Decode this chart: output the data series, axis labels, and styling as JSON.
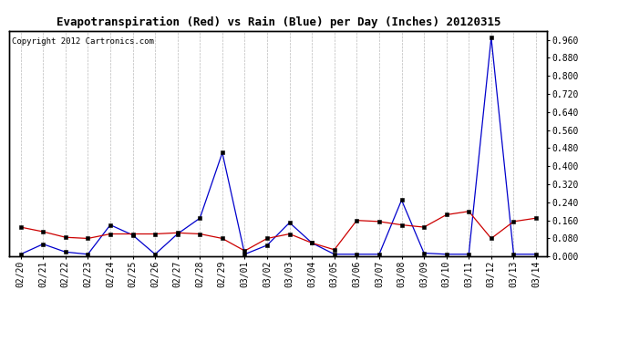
{
  "title": "Evapotranspiration (Red) vs Rain (Blue) per Day (Inches) 20120315",
  "copyright": "Copyright 2012 Cartronics.com",
  "x_labels": [
    "02/20",
    "02/21",
    "02/22",
    "02/23",
    "02/24",
    "02/25",
    "02/26",
    "02/27",
    "02/28",
    "02/29",
    "03/01",
    "03/02",
    "03/03",
    "03/04",
    "03/05",
    "03/06",
    "03/07",
    "03/08",
    "03/09",
    "03/10",
    "03/11",
    "03/12",
    "03/13",
    "03/14"
  ],
  "rain_blue": [
    0.01,
    0.055,
    0.02,
    0.01,
    0.14,
    0.095,
    0.01,
    0.1,
    0.17,
    0.46,
    0.01,
    0.05,
    0.15,
    0.06,
    0.01,
    0.01,
    0.01,
    0.25,
    0.015,
    0.01,
    0.01,
    0.97,
    0.01,
    0.01
  ],
  "et_red": [
    0.13,
    0.11,
    0.085,
    0.08,
    0.1,
    0.1,
    0.1,
    0.105,
    0.1,
    0.08,
    0.025,
    0.08,
    0.1,
    0.06,
    0.03,
    0.16,
    0.155,
    0.14,
    0.13,
    0.185,
    0.2,
    0.08,
    0.155,
    0.17
  ],
  "ylim": [
    0.0,
    1.0
  ],
  "yticks": [
    0.0,
    0.08,
    0.16,
    0.24,
    0.32,
    0.4,
    0.48,
    0.56,
    0.64,
    0.72,
    0.8,
    0.88,
    0.96
  ],
  "background_color": "#ffffff",
  "grid_color": "#bbbbbb",
  "blue_color": "#0000cc",
  "red_color": "#cc0000",
  "title_fontsize": 9,
  "copyright_fontsize": 6.5,
  "tick_fontsize": 7
}
